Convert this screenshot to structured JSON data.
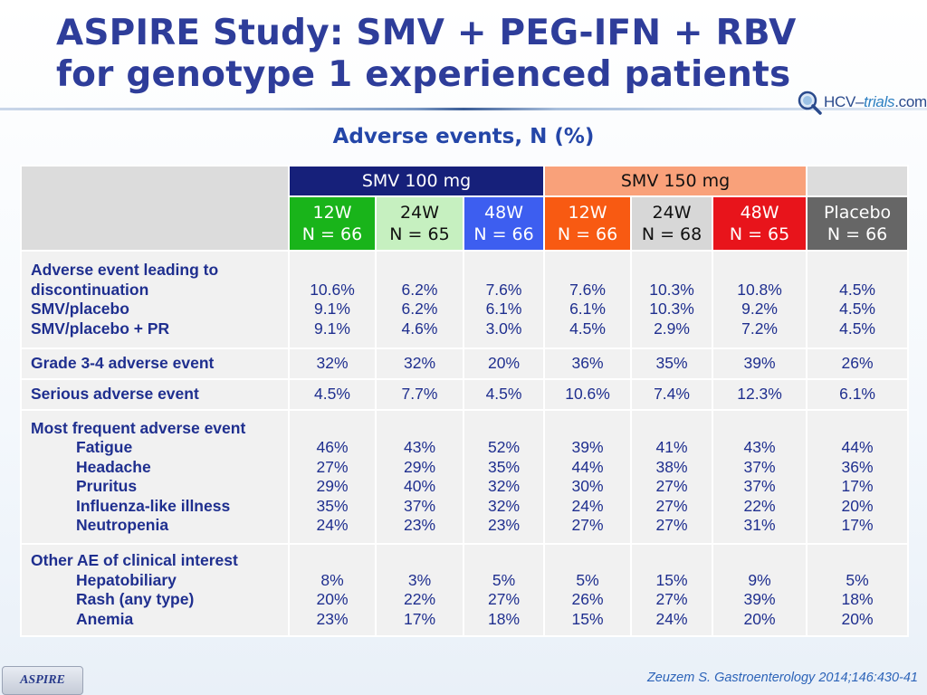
{
  "title": {
    "line1": "ASPIRE Study: SMV + PEG-IFN + RBV",
    "line2": "for genotype 1 experienced patients"
  },
  "logo": {
    "prefix": "HCV–",
    "accent": "trials",
    "suffix": ".com"
  },
  "subtitle": "Adverse events, N (%)",
  "groups": {
    "smv100": "SMV 100 mg",
    "smv150": "SMV 150 mg"
  },
  "columns": [
    {
      "line1": "12W",
      "line2": "N = 66"
    },
    {
      "line1": "24W",
      "line2": "N = 65"
    },
    {
      "line1": "48W",
      "line2": "N = 66"
    },
    {
      "line1": "12W",
      "line2": "N = 66"
    },
    {
      "line1": "24W",
      "line2": "N = 68"
    },
    {
      "line1": "48W",
      "line2": "N = 65"
    },
    {
      "line1": "Placebo",
      "line2": "N = 66"
    }
  ],
  "rows": [
    {
      "labels": [
        {
          "text": "Adverse event leading to",
          "indent": false
        },
        {
          "text": "discontinuation",
          "indent": false
        },
        {
          "text": "SMV/placebo",
          "indent": false
        },
        {
          "text": "SMV/placebo + PR",
          "indent": false
        }
      ],
      "values": [
        [
          "10.6%",
          "9.1%",
          "9.1%"
        ],
        [
          "6.2%",
          "6.2%",
          "4.6%"
        ],
        [
          "7.6%",
          "6.1%",
          "3.0%"
        ],
        [
          "7.6%",
          "6.1%",
          "4.5%"
        ],
        [
          "10.3%",
          "10.3%",
          "2.9%"
        ],
        [
          "10.8%",
          "9.2%",
          "7.2%"
        ],
        [
          "4.5%",
          "4.5%",
          "4.5%"
        ]
      ]
    },
    {
      "labels": [
        {
          "text": "Grade 3-4 adverse event",
          "indent": false
        }
      ],
      "values": [
        [
          "32%"
        ],
        [
          "32%"
        ],
        [
          "20%"
        ],
        [
          "36%"
        ],
        [
          "35%"
        ],
        [
          "39%"
        ],
        [
          "26%"
        ]
      ]
    },
    {
      "labels": [
        {
          "text": "Serious adverse event",
          "indent": false
        }
      ],
      "values": [
        [
          "4.5%"
        ],
        [
          "7.7%"
        ],
        [
          "4.5%"
        ],
        [
          "10.6%"
        ],
        [
          "7.4%"
        ],
        [
          "12.3%"
        ],
        [
          "6.1%"
        ]
      ]
    },
    {
      "labels": [
        {
          "text": "Most frequent adverse event",
          "indent": false
        },
        {
          "text": "Fatigue",
          "indent": true
        },
        {
          "text": "Headache",
          "indent": true
        },
        {
          "text": "Pruritus",
          "indent": true
        },
        {
          "text": "Influenza-like illness",
          "indent": true
        },
        {
          "text": "Neutropenia",
          "indent": true
        }
      ],
      "values": [
        [
          "46%",
          "27%",
          "29%",
          "35%",
          "24%"
        ],
        [
          "43%",
          "29%",
          "40%",
          "37%",
          "23%"
        ],
        [
          "52%",
          "35%",
          "32%",
          "32%",
          "23%"
        ],
        [
          "39%",
          "44%",
          "30%",
          "24%",
          "27%"
        ],
        [
          "41%",
          "38%",
          "27%",
          "27%",
          "27%"
        ],
        [
          "43%",
          "37%",
          "37%",
          "22%",
          "31%"
        ],
        [
          "44%",
          "36%",
          "17%",
          "20%",
          "17%"
        ]
      ]
    },
    {
      "labels": [
        {
          "text": "Other AE of clinical interest",
          "indent": false
        },
        {
          "text": "Hepatobiliary",
          "indent": true
        },
        {
          "text": "Rash (any type)",
          "indent": true
        },
        {
          "text": "Anemia",
          "indent": true
        }
      ],
      "values": [
        [
          "8%",
          "20%",
          "23%"
        ],
        [
          "3%",
          "22%",
          "17%"
        ],
        [
          "5%",
          "27%",
          "18%"
        ],
        [
          "5%",
          "26%",
          "15%"
        ],
        [
          "15%",
          "27%",
          "24%"
        ],
        [
          "9%",
          "39%",
          "20%"
        ],
        [
          "5%",
          "18%",
          "20%"
        ]
      ]
    }
  ],
  "footer": {
    "tab": "ASPIRE",
    "citation": "Zeuzem S. Gastroenterology 2014;146:430-41"
  },
  "colors": {
    "title": "#2e3d9a",
    "smv100_header": "#16207a",
    "smv150_header": "#f9a17a",
    "col_12w_100": "#19b41a",
    "col_24w_100": "#c6f0c0",
    "col_48w_100": "#3d5ef0",
    "col_12w_150": "#f85a12",
    "col_24w_150": "#d7d7d7",
    "col_48w_150": "#e8141b",
    "col_placebo": "#666666"
  }
}
